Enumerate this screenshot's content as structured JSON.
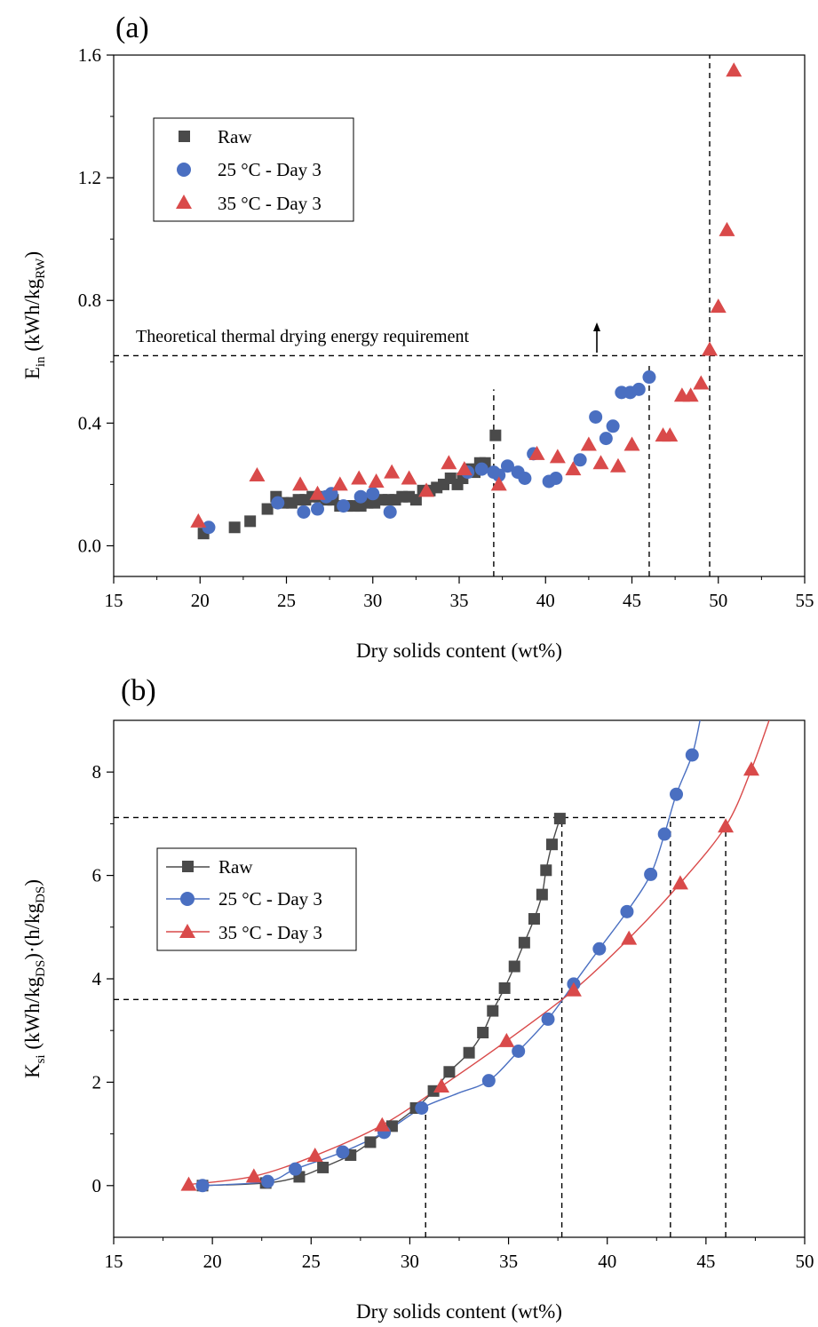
{
  "chart_data": [
    {
      "panel_label": "(a)",
      "type": "scatter",
      "xlabel": "Dry solids content (wt%)",
      "ylabel": {
        "main": "E",
        "sub": "in",
        "rest": " (kWh/kg",
        "sub2": "RW",
        "end": ")"
      },
      "xlim": [
        15,
        55
      ],
      "ylim": [
        -0.1,
        1.6
      ],
      "xticks": [
        15,
        20,
        25,
        30,
        35,
        40,
        45,
        50,
        55
      ],
      "yticks": [
        0.0,
        0.4,
        0.8,
        1.2,
        1.6
      ],
      "ytick_labels": [
        "0.0",
        "0.4",
        "0.8",
        "1.2",
        "1.6"
      ],
      "annotation": {
        "text": "Theoretical thermal drying energy requirement",
        "y": 0.62
      },
      "vlines": [
        {
          "x": 37.0,
          "y_top": 0.51
        },
        {
          "x": 46.0,
          "y_top": 0.6
        },
        {
          "x": 49.5,
          "y_top": 1.6
        }
      ],
      "legend_position": "top-left",
      "series": [
        {
          "name": "Raw",
          "marker": "square",
          "color": "#4a4a4a",
          "points": [
            [
              20.2,
              0.04
            ],
            [
              22.0,
              0.06
            ],
            [
              22.9,
              0.08
            ],
            [
              23.9,
              0.12
            ],
            [
              24.4,
              0.16
            ],
            [
              24.8,
              0.14
            ],
            [
              25.3,
              0.14
            ],
            [
              25.7,
              0.15
            ],
            [
              26.1,
              0.15
            ],
            [
              26.5,
              0.16
            ],
            [
              26.9,
              0.16
            ],
            [
              27.3,
              0.15
            ],
            [
              27.7,
              0.15
            ],
            [
              28.1,
              0.13
            ],
            [
              28.5,
              0.13
            ],
            [
              28.9,
              0.13
            ],
            [
              29.3,
              0.13
            ],
            [
              29.7,
              0.14
            ],
            [
              30.1,
              0.14
            ],
            [
              30.5,
              0.15
            ],
            [
              30.9,
              0.15
            ],
            [
              31.3,
              0.15
            ],
            [
              31.7,
              0.16
            ],
            [
              32.1,
              0.16
            ],
            [
              32.5,
              0.15
            ],
            [
              32.9,
              0.18
            ],
            [
              33.3,
              0.18
            ],
            [
              33.7,
              0.19
            ],
            [
              34.1,
              0.2
            ],
            [
              34.5,
              0.22
            ],
            [
              34.9,
              0.2
            ],
            [
              35.2,
              0.22
            ],
            [
              35.6,
              0.25
            ],
            [
              35.9,
              0.24
            ],
            [
              36.2,
              0.27
            ],
            [
              36.5,
              0.27
            ],
            [
              37.1,
              0.36
            ]
          ]
        },
        {
          "name": "25 °C - Day 3",
          "marker": "circle",
          "color": "#4a6fc1",
          "points": [
            [
              20.5,
              0.06
            ],
            [
              24.5,
              0.14
            ],
            [
              26.0,
              0.11
            ],
            [
              26.8,
              0.12
            ],
            [
              27.3,
              0.16
            ],
            [
              27.6,
              0.17
            ],
            [
              28.3,
              0.13
            ],
            [
              29.3,
              0.16
            ],
            [
              30.0,
              0.17
            ],
            [
              31.0,
              0.11
            ],
            [
              35.5,
              0.24
            ],
            [
              36.3,
              0.25
            ],
            [
              37.0,
              0.24
            ],
            [
              37.3,
              0.23
            ],
            [
              37.8,
              0.26
            ],
            [
              38.4,
              0.24
            ],
            [
              38.8,
              0.22
            ],
            [
              39.3,
              0.3
            ],
            [
              40.2,
              0.21
            ],
            [
              40.6,
              0.22
            ],
            [
              42.0,
              0.28
            ],
            [
              42.9,
              0.42
            ],
            [
              43.5,
              0.35
            ],
            [
              43.9,
              0.39
            ],
            [
              44.4,
              0.5
            ],
            [
              44.9,
              0.5
            ],
            [
              45.4,
              0.51
            ],
            [
              46.0,
              0.55
            ]
          ]
        },
        {
          "name": "35 °C - Day 3",
          "marker": "triangle",
          "color": "#d94a4a",
          "points": [
            [
              19.9,
              0.08
            ],
            [
              23.3,
              0.23
            ],
            [
              25.8,
              0.2
            ],
            [
              26.8,
              0.17
            ],
            [
              28.1,
              0.2
            ],
            [
              29.2,
              0.22
            ],
            [
              30.2,
              0.21
            ],
            [
              31.1,
              0.24
            ],
            [
              32.1,
              0.22
            ],
            [
              33.1,
              0.18
            ],
            [
              34.4,
              0.27
            ],
            [
              35.3,
              0.25
            ],
            [
              37.3,
              0.2
            ],
            [
              39.5,
              0.3
            ],
            [
              40.7,
              0.29
            ],
            [
              41.6,
              0.25
            ],
            [
              42.5,
              0.33
            ],
            [
              43.2,
              0.27
            ],
            [
              44.2,
              0.26
            ],
            [
              45.0,
              0.33
            ],
            [
              46.8,
              0.36
            ],
            [
              47.2,
              0.36
            ],
            [
              47.9,
              0.49
            ],
            [
              48.4,
              0.49
            ],
            [
              49.0,
              0.53
            ],
            [
              49.5,
              0.64
            ],
            [
              50.0,
              0.78
            ],
            [
              50.5,
              1.03
            ],
            [
              50.9,
              1.55
            ]
          ]
        }
      ]
    },
    {
      "panel_label": "(b)",
      "type": "line",
      "xlabel": "Dry solids content (wt%)",
      "ylabel": {
        "main": "K",
        "sub": "si",
        "rest": " (kWh/kg",
        "sub2": "DS",
        "mid": ")·(h/kg",
        "sub3": "DS",
        "end": ")"
      },
      "xlim": [
        15,
        50
      ],
      "ylim": [
        -1,
        9
      ],
      "xticks": [
        15,
        20,
        25,
        30,
        35,
        40,
        45,
        50
      ],
      "yticks": [
        0,
        2,
        4,
        6,
        8
      ],
      "ytick_labels": [
        "0",
        "2",
        "4",
        "6",
        "8"
      ],
      "hlines": [
        {
          "y": 7.12,
          "x_end": 46.0
        },
        {
          "y": 3.6,
          "x_end": 37.7
        }
      ],
      "vlines": [
        {
          "x": 30.8,
          "y_top": 1.5
        },
        {
          "x": 37.7,
          "y_top": 7.12
        },
        {
          "x": 43.2,
          "y_top": 7.12
        },
        {
          "x": 46.0,
          "y_top": 7.12
        }
      ],
      "legend_position": "middle-left",
      "series": [
        {
          "name": "Raw",
          "marker": "square",
          "color": "#4a4a4a",
          "points": [
            [
              19.5,
              0.0
            ],
            [
              22.7,
              0.05
            ],
            [
              24.4,
              0.17
            ],
            [
              25.6,
              0.35
            ],
            [
              27.0,
              0.59
            ],
            [
              28.0,
              0.84
            ],
            [
              29.1,
              1.15
            ],
            [
              30.3,
              1.5
            ],
            [
              31.2,
              1.83
            ],
            [
              32.0,
              2.2
            ],
            [
              33.0,
              2.57
            ],
            [
              33.7,
              2.96
            ],
            [
              34.2,
              3.38
            ],
            [
              34.8,
              3.82
            ],
            [
              35.3,
              4.24
            ],
            [
              35.8,
              4.7
            ],
            [
              36.3,
              5.16
            ],
            [
              36.7,
              5.63
            ],
            [
              36.9,
              6.1
            ],
            [
              37.2,
              6.6
            ],
            [
              37.6,
              7.1
            ]
          ],
          "curve": [
            [
              19.5,
              0.0
            ],
            [
              22.7,
              0.05
            ],
            [
              24.4,
              0.17
            ],
            [
              25.6,
              0.35
            ],
            [
              27.0,
              0.59
            ],
            [
              28.0,
              0.84
            ],
            [
              29.1,
              1.15
            ],
            [
              30.3,
              1.5
            ],
            [
              31.2,
              1.83
            ],
            [
              32.0,
              2.2
            ],
            [
              33.0,
              2.57
            ],
            [
              33.7,
              2.96
            ],
            [
              34.2,
              3.38
            ],
            [
              34.8,
              3.82
            ],
            [
              35.3,
              4.24
            ],
            [
              35.8,
              4.7
            ],
            [
              36.3,
              5.16
            ],
            [
              36.7,
              5.63
            ],
            [
              36.9,
              6.1
            ],
            [
              37.2,
              6.6
            ],
            [
              37.6,
              7.1
            ]
          ]
        },
        {
          "name": "25 °C - Day 3",
          "marker": "circle",
          "color": "#4a6fc1",
          "points": [
            [
              19.5,
              0.0
            ],
            [
              22.8,
              0.08
            ],
            [
              24.2,
              0.32
            ],
            [
              26.6,
              0.65
            ],
            [
              28.7,
              1.03
            ],
            [
              30.6,
              1.5
            ],
            [
              34.0,
              2.03
            ],
            [
              35.5,
              2.6
            ],
            [
              37.0,
              3.22
            ],
            [
              38.3,
              3.9
            ],
            [
              39.6,
              4.58
            ],
            [
              41.0,
              5.3
            ],
            [
              42.2,
              6.02
            ],
            [
              42.9,
              6.8
            ],
            [
              43.5,
              7.57
            ],
            [
              44.3,
              8.33
            ]
          ],
          "curve": [
            [
              19.5,
              0.0
            ],
            [
              22.8,
              0.08
            ],
            [
              24.2,
              0.32
            ],
            [
              26.6,
              0.65
            ],
            [
              28.7,
              1.03
            ],
            [
              30.6,
              1.5
            ],
            [
              32.4,
              1.78
            ],
            [
              34.0,
              2.03
            ],
            [
              35.5,
              2.6
            ],
            [
              37.0,
              3.22
            ],
            [
              38.3,
              3.9
            ],
            [
              39.6,
              4.58
            ],
            [
              41.0,
              5.3
            ],
            [
              42.2,
              6.02
            ],
            [
              42.9,
              6.8
            ],
            [
              43.5,
              7.57
            ],
            [
              44.3,
              8.33
            ],
            [
              44.7,
              9.0
            ]
          ]
        },
        {
          "name": "35 °C - Day 3",
          "marker": "triangle",
          "color": "#d94a4a",
          "points": [
            [
              18.8,
              0.02
            ],
            [
              22.1,
              0.18
            ],
            [
              25.2,
              0.58
            ],
            [
              28.6,
              1.17
            ],
            [
              31.6,
              1.92
            ],
            [
              34.9,
              2.8
            ],
            [
              38.3,
              3.78
            ],
            [
              41.1,
              4.78
            ],
            [
              43.7,
              5.85
            ],
            [
              46.0,
              6.95
            ],
            [
              47.3,
              8.05
            ]
          ],
          "curve": [
            [
              18.8,
              0.02
            ],
            [
              22.1,
              0.18
            ],
            [
              25.2,
              0.58
            ],
            [
              28.6,
              1.17
            ],
            [
              31.6,
              1.92
            ],
            [
              34.9,
              2.8
            ],
            [
              38.3,
              3.78
            ],
            [
              41.1,
              4.78
            ],
            [
              43.7,
              5.85
            ],
            [
              46.0,
              6.95
            ],
            [
              47.3,
              8.05
            ],
            [
              48.2,
              9.0
            ]
          ]
        }
      ]
    }
  ]
}
